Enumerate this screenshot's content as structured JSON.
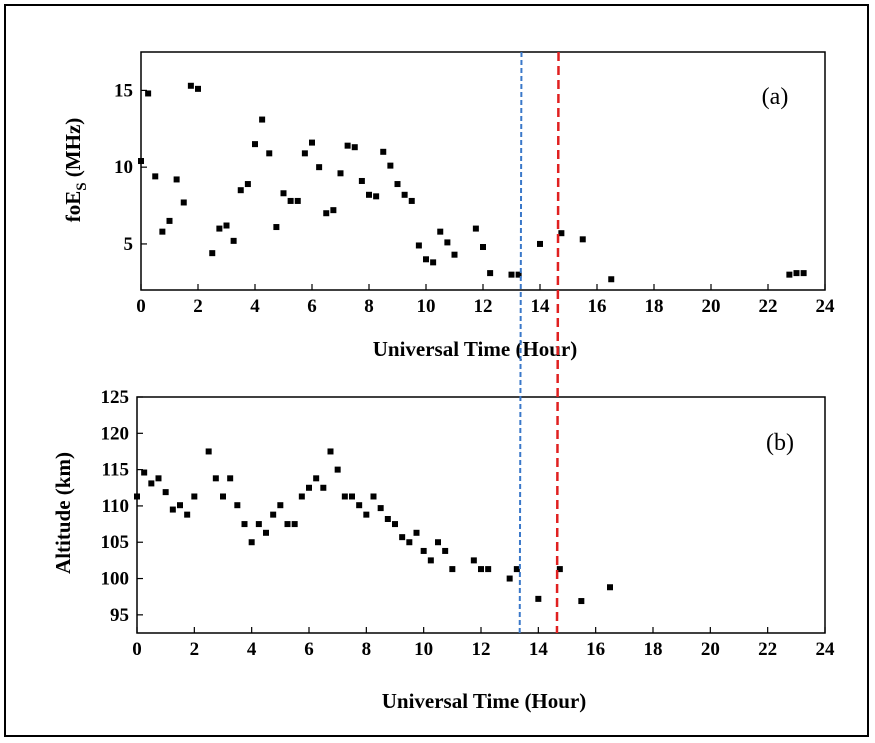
{
  "chart_data": [
    {
      "type": "scatter",
      "panel_label": "(a)",
      "xlabel": "Universal Time (Hour)",
      "ylabel_main": "foE",
      "ylabel_sub": "S",
      "ylabel_unit": " (MHz)",
      "xlim": [
        0,
        24
      ],
      "ylim": [
        2,
        17.5
      ],
      "x_ticks": [
        0,
        2,
        4,
        6,
        8,
        10,
        12,
        14,
        16,
        18,
        20,
        22,
        24
      ],
      "y_ticks": [
        5,
        10,
        15
      ],
      "series": [
        {
          "color": "#000000",
          "marker": "square",
          "points": [
            [
              0,
              10.4
            ],
            [
              0.25,
              14.8
            ],
            [
              0.5,
              9.4
            ],
            [
              0.75,
              5.8
            ],
            [
              1.0,
              6.5
            ],
            [
              1.25,
              9.2
            ],
            [
              1.5,
              7.7
            ],
            [
              1.75,
              15.3
            ],
            [
              2.0,
              15.1
            ],
            [
              2.5,
              4.4
            ],
            [
              2.75,
              6.0
            ],
            [
              3.0,
              6.2
            ],
            [
              3.25,
              5.2
            ],
            [
              3.5,
              8.5
            ],
            [
              3.75,
              8.9
            ],
            [
              4.0,
              11.5
            ],
            [
              4.25,
              13.1
            ],
            [
              4.5,
              10.9
            ],
            [
              4.75,
              6.1
            ],
            [
              5.0,
              8.3
            ],
            [
              5.25,
              7.8
            ],
            [
              5.5,
              7.8
            ],
            [
              5.75,
              10.9
            ],
            [
              6.0,
              11.6
            ],
            [
              6.25,
              10.0
            ],
            [
              6.5,
              7.0
            ],
            [
              6.75,
              7.2
            ],
            [
              7.0,
              9.6
            ],
            [
              7.25,
              11.4
            ],
            [
              7.5,
              11.3
            ],
            [
              7.75,
              9.1
            ],
            [
              8.0,
              8.2
            ],
            [
              8.25,
              8.1
            ],
            [
              8.5,
              11.0
            ],
            [
              8.75,
              10.1
            ],
            [
              9.0,
              8.9
            ],
            [
              9.25,
              8.2
            ],
            [
              9.5,
              7.8
            ],
            [
              9.75,
              4.9
            ],
            [
              10.0,
              4.0
            ],
            [
              10.25,
              3.8
            ],
            [
              10.5,
              5.8
            ],
            [
              10.75,
              5.1
            ],
            [
              11.0,
              4.3
            ],
            [
              11.75,
              6.0
            ],
            [
              12.0,
              4.8
            ],
            [
              12.25,
              3.1
            ],
            [
              13.0,
              3.0
            ],
            [
              13.25,
              3.0
            ],
            [
              14.0,
              5.0
            ],
            [
              14.75,
              5.7
            ],
            [
              15.5,
              5.3
            ],
            [
              16.5,
              2.7
            ],
            [
              22.75,
              3.0
            ],
            [
              23.0,
              3.1
            ],
            [
              23.25,
              3.1
            ]
          ]
        }
      ],
      "vlines": [
        {
          "x": 13.35,
          "color": "#3a78c9",
          "style": "dashed"
        },
        {
          "x": 14.65,
          "color": "#e02020",
          "style": "dashed"
        }
      ]
    },
    {
      "type": "scatter",
      "panel_label": "(b)",
      "xlabel": "Universal Time (Hour)",
      "ylabel_main": "Altitude (km)",
      "xlim": [
        0,
        24
      ],
      "ylim": [
        92.5,
        125
      ],
      "x_ticks": [
        0,
        2,
        4,
        6,
        8,
        10,
        12,
        14,
        16,
        18,
        20,
        22,
        24
      ],
      "y_ticks": [
        95,
        100,
        105,
        110,
        115,
        120,
        125
      ],
      "series": [
        {
          "color": "#000000",
          "marker": "square",
          "points": [
            [
              0,
              111.3
            ],
            [
              0.25,
              114.6
            ],
            [
              0.5,
              113.1
            ],
            [
              0.75,
              113.8
            ],
            [
              1.0,
              111.9
            ],
            [
              1.25,
              109.5
            ],
            [
              1.5,
              110.1
            ],
            [
              1.75,
              108.8
            ],
            [
              2.0,
              111.3
            ],
            [
              2.5,
              117.5
            ],
            [
              2.75,
              113.8
            ],
            [
              3.0,
              111.3
            ],
            [
              3.25,
              113.8
            ],
            [
              3.5,
              110.1
            ],
            [
              3.75,
              107.5
            ],
            [
              4.0,
              105.0
            ],
            [
              4.25,
              107.5
            ],
            [
              4.5,
              106.3
            ],
            [
              4.75,
              108.8
            ],
            [
              5.0,
              110.1
            ],
            [
              5.25,
              107.5
            ],
            [
              5.5,
              107.5
            ],
            [
              5.75,
              111.3
            ],
            [
              6.0,
              112.5
            ],
            [
              6.25,
              113.8
            ],
            [
              6.5,
              112.5
            ],
            [
              6.75,
              117.5
            ],
            [
              7.0,
              115.0
            ],
            [
              7.25,
              111.3
            ],
            [
              7.5,
              111.3
            ],
            [
              7.75,
              110.1
            ],
            [
              8.0,
              108.8
            ],
            [
              8.25,
              111.3
            ],
            [
              8.5,
              109.7
            ],
            [
              8.75,
              108.2
            ],
            [
              9.0,
              107.5
            ],
            [
              9.25,
              105.7
            ],
            [
              9.5,
              105.0
            ],
            [
              9.75,
              106.3
            ],
            [
              10.0,
              103.8
            ],
            [
              10.25,
              102.5
            ],
            [
              10.5,
              105.0
            ],
            [
              10.75,
              103.8
            ],
            [
              11.0,
              101.3
            ],
            [
              11.75,
              102.5
            ],
            [
              12.0,
              101.3
            ],
            [
              12.25,
              101.3
            ],
            [
              13.0,
              100.0
            ],
            [
              13.25,
              101.3
            ],
            [
              14.0,
              97.2
            ],
            [
              14.75,
              101.3
            ],
            [
              15.5,
              96.9
            ],
            [
              16.5,
              98.8
            ]
          ]
        }
      ],
      "vlines": [
        {
          "x": 13.35,
          "color": "#3a78c9",
          "style": "dashed"
        },
        {
          "x": 14.65,
          "color": "#e02020",
          "style": "dashed"
        }
      ]
    }
  ]
}
